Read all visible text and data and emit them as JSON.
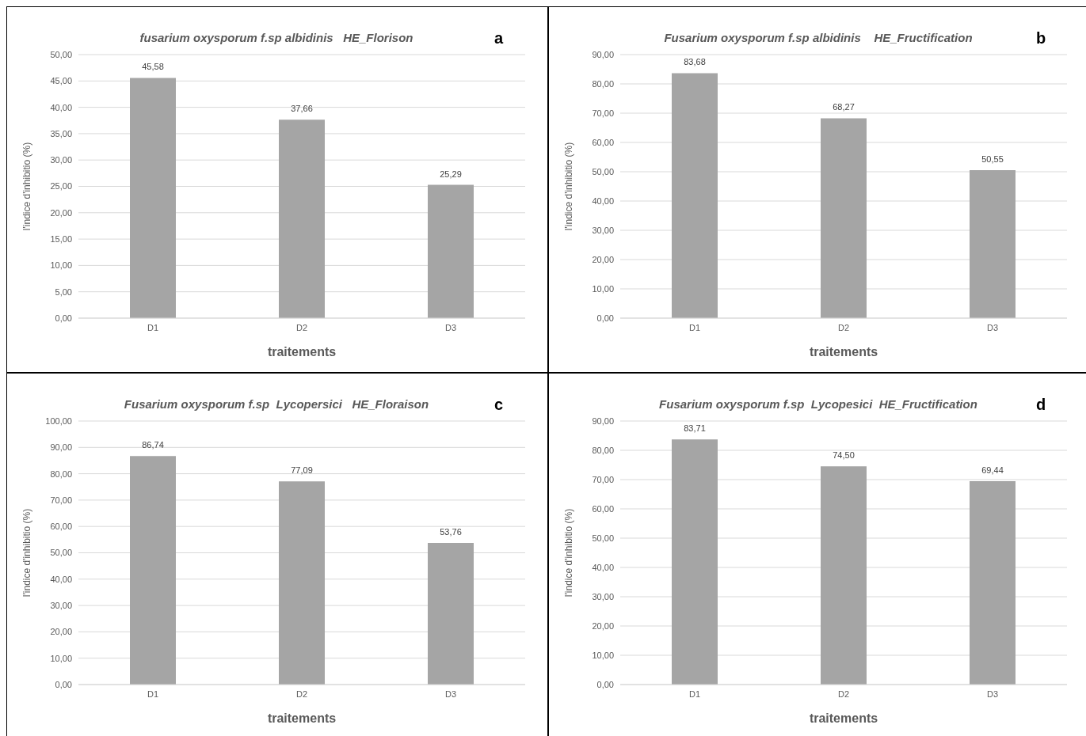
{
  "chart_data": [
    {
      "type": "bar",
      "title": "fusarium oxysporum f.sp albidinis   HE_Florison",
      "xlabel": "traitements",
      "ylabel": "l'indice d'inhibitio (%)",
      "annotations": [
        "a"
      ],
      "categories": [
        "D1",
        "D2",
        "D3"
      ],
      "values": [
        45.58,
        37.66,
        25.29
      ],
      "value_labels": [
        "45,58",
        "37,66",
        "25,29"
      ],
      "color": "#a5a5a5",
      "ylim": [
        0,
        50
      ],
      "yticks": [
        {
          "value": 0,
          "label": "0,00"
        },
        {
          "value": 5,
          "label": "5,00"
        },
        {
          "value": 10,
          "label": "10,00"
        },
        {
          "value": 15,
          "label": "15,00"
        },
        {
          "value": 20,
          "label": "20,00"
        },
        {
          "value": 25,
          "label": "25,00"
        },
        {
          "value": 30,
          "label": "30,00"
        },
        {
          "value": 35,
          "label": "35,00"
        },
        {
          "value": 40,
          "label": "40,00"
        },
        {
          "value": 45,
          "label": "45,00"
        },
        {
          "value": 50,
          "label": "50,00"
        }
      ],
      "grid": "y"
    },
    {
      "type": "bar",
      "title": "Fusarium oxysporum f.sp albidinis    HE_Fructification",
      "xlabel": "traitements",
      "ylabel": "l'indice d'inhibitio (%)",
      "annotations": [
        "b"
      ],
      "categories": [
        "D1",
        "D2",
        "D3"
      ],
      "values": [
        83.68,
        68.27,
        50.55
      ],
      "value_labels": [
        "83,68",
        "68,27",
        "50,55"
      ],
      "color": "#a5a5a5",
      "ylim": [
        0,
        90
      ],
      "yticks": [
        {
          "value": 0,
          "label": "0,00"
        },
        {
          "value": 10,
          "label": "10,00"
        },
        {
          "value": 20,
          "label": "20,00"
        },
        {
          "value": 30,
          "label": "30,00"
        },
        {
          "value": 40,
          "label": "40,00"
        },
        {
          "value": 50,
          "label": "50,00"
        },
        {
          "value": 60,
          "label": "60,00"
        },
        {
          "value": 70,
          "label": "70,00"
        },
        {
          "value": 80,
          "label": "80,00"
        },
        {
          "value": 90,
          "label": "90,00"
        }
      ],
      "grid": "y"
    },
    {
      "type": "bar",
      "title": "Fusarium oxysporum f.sp  Lycopersici   HE_Floraison",
      "xlabel": "traitements",
      "ylabel": "l'indice d'inhibitio (%)",
      "annotations": [
        "c"
      ],
      "categories": [
        "D1",
        "D2",
        "D3"
      ],
      "values": [
        86.74,
        77.09,
        53.76
      ],
      "value_labels": [
        "86,74",
        "77,09",
        "53,76"
      ],
      "color": "#a5a5a5",
      "ylim": [
        0,
        100
      ],
      "yticks": [
        {
          "value": 0,
          "label": "0,00"
        },
        {
          "value": 10,
          "label": "10,00"
        },
        {
          "value": 20,
          "label": "20,00"
        },
        {
          "value": 30,
          "label": "30,00"
        },
        {
          "value": 40,
          "label": "40,00"
        },
        {
          "value": 50,
          "label": "50,00"
        },
        {
          "value": 60,
          "label": "60,00"
        },
        {
          "value": 70,
          "label": "70,00"
        },
        {
          "value": 80,
          "label": "80,00"
        },
        {
          "value": 90,
          "label": "90,00"
        },
        {
          "value": 100,
          "label": "100,00"
        }
      ],
      "grid": "y"
    },
    {
      "type": "bar",
      "title": "Fusarium oxysporum f.sp  Lycopesici  HE_Fructification",
      "xlabel": "traitements",
      "ylabel": "l'indice d'inhibitio (%)",
      "annotations": [
        "d"
      ],
      "categories": [
        "D1",
        "D2",
        "D3"
      ],
      "values": [
        83.71,
        74.5,
        69.44
      ],
      "value_labels": [
        "83,71",
        "74,50",
        "69,44"
      ],
      "color": "#a5a5a5",
      "ylim": [
        0,
        90
      ],
      "yticks": [
        {
          "value": 0,
          "label": "0,00"
        },
        {
          "value": 10,
          "label": "10,00"
        },
        {
          "value": 20,
          "label": "20,00"
        },
        {
          "value": 30,
          "label": "30,00"
        },
        {
          "value": 40,
          "label": "40,00"
        },
        {
          "value": 50,
          "label": "50,00"
        },
        {
          "value": 60,
          "label": "60,00"
        },
        {
          "value": 70,
          "label": "70,00"
        },
        {
          "value": 80,
          "label": "80,00"
        },
        {
          "value": 90,
          "label": "90,00"
        }
      ],
      "grid": "y"
    }
  ]
}
